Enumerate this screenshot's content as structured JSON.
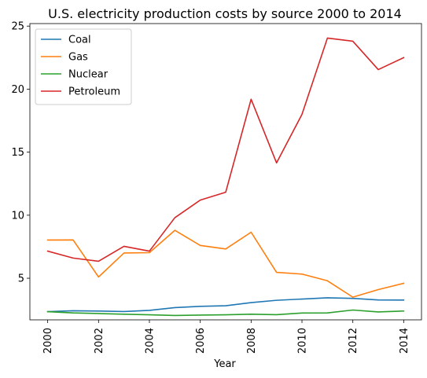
{
  "chart_data": {
    "type": "line",
    "title": "U.S. electricity production costs by source 2000 to 2014",
    "xlabel": "Year",
    "ylabel": "",
    "x": [
      2000,
      2001,
      2002,
      2003,
      2004,
      2005,
      2006,
      2007,
      2008,
      2009,
      2010,
      2011,
      2012,
      2013,
      2014
    ],
    "xlim": [
      1999.3,
      2014.7
    ],
    "ylim": [
      1.7,
      25.2
    ],
    "x_ticks": [
      "2000",
      "2002",
      "2004",
      "2006",
      "2008",
      "2010",
      "2012",
      "2014"
    ],
    "y_ticks": [
      "5",
      "10",
      "15",
      "20",
      "25"
    ],
    "grid": false,
    "legend_position": "top-left",
    "series": [
      {
        "name": "Coal",
        "color": "#1f77b4",
        "values": [
          2.35,
          2.42,
          2.4,
          2.36,
          2.45,
          2.67,
          2.77,
          2.82,
          3.07,
          3.25,
          3.35,
          3.45,
          3.4,
          3.28,
          3.27
        ]
      },
      {
        "name": "Gas",
        "color": "#ff7f0e",
        "values": [
          8.03,
          8.04,
          5.1,
          7.0,
          7.03,
          8.8,
          7.6,
          7.32,
          8.65,
          5.47,
          5.33,
          4.8,
          3.5,
          4.1,
          4.6
        ]
      },
      {
        "name": "Nuclear",
        "color": "#2ca02c",
        "values": [
          2.35,
          2.25,
          2.2,
          2.15,
          2.1,
          2.05,
          2.08,
          2.1,
          2.15,
          2.11,
          2.24,
          2.25,
          2.48,
          2.33,
          2.4
        ]
      },
      {
        "name": "Petroleum",
        "color": "#d62728",
        "values": [
          7.15,
          6.6,
          6.35,
          7.53,
          7.15,
          9.8,
          11.2,
          11.82,
          19.2,
          14.15,
          18.0,
          24.05,
          23.8,
          21.55,
          22.5
        ]
      }
    ]
  }
}
